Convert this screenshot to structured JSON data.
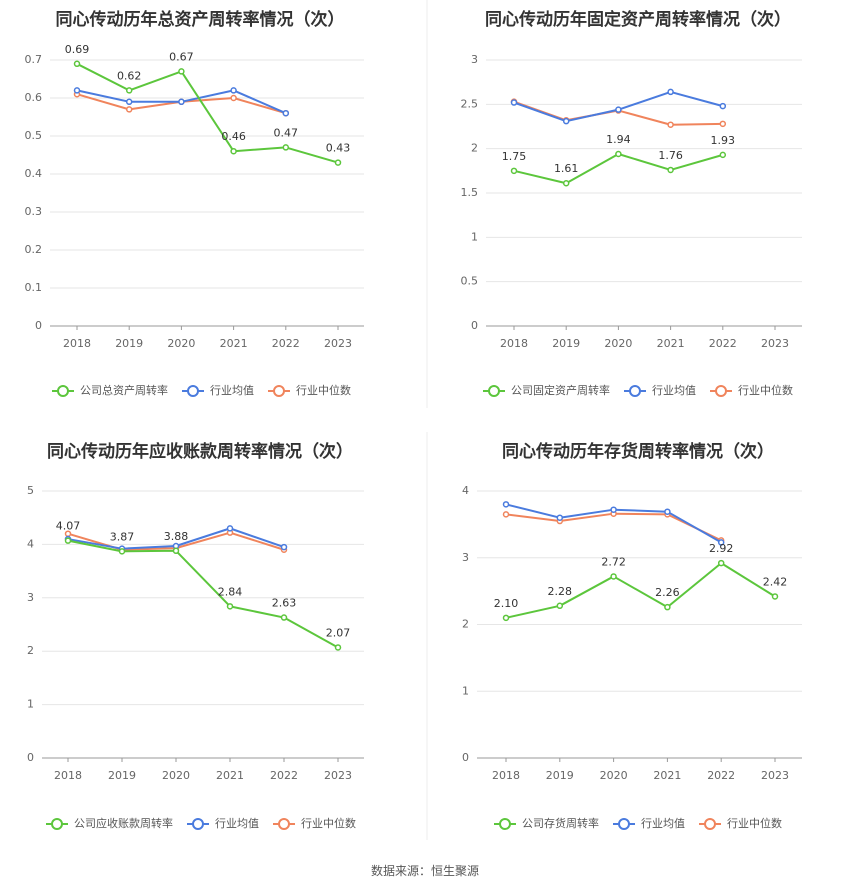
{
  "colors": {
    "company": "#5cc63c",
    "industry_avg": "#4a7bde",
    "industry_median": "#f0845c"
  },
  "source_text": "数据来源：恒生聚源",
  "chart_data": [
    {
      "type": "line",
      "title": "同心传动历年总资产周转率情况（次）",
      "categories": [
        "2018",
        "2019",
        "2020",
        "2021",
        "2022",
        "2023"
      ],
      "yticks": [
        "0",
        "0.1",
        "0.2",
        "0.3",
        "0.4",
        "0.5",
        "0.6",
        "0.7"
      ],
      "ylim": [
        0,
        0.7
      ],
      "series": [
        {
          "name": "公司总资产周转率",
          "values": [
            0.69,
            0.62,
            0.67,
            0.46,
            0.47,
            0.43
          ],
          "labels": [
            "0.69",
            "0.62",
            "0.67",
            "0.46",
            "0.47",
            "0.43"
          ]
        },
        {
          "name": "行业均值",
          "values": [
            0.62,
            0.59,
            0.59,
            0.62,
            0.56,
            null
          ]
        },
        {
          "name": "行业中位数",
          "values": [
            0.61,
            0.57,
            0.59,
            0.6,
            0.56,
            null
          ]
        }
      ]
    },
    {
      "type": "line",
      "title": "同心传动历年固定资产周转率情况（次）",
      "categories": [
        "2018",
        "2019",
        "2020",
        "2021",
        "2022",
        "2023"
      ],
      "yticks": [
        "0",
        "0.5",
        "1",
        "1.5",
        "2",
        "2.5",
        "3"
      ],
      "ylim": [
        0,
        3
      ],
      "series": [
        {
          "name": "公司固定资产周转率",
          "values": [
            1.75,
            1.61,
            1.94,
            1.76,
            1.93,
            null
          ],
          "labels": [
            "1.75",
            "1.61",
            "1.94",
            "1.76",
            "1.93",
            ""
          ]
        },
        {
          "name": "行业均值",
          "values": [
            2.52,
            2.31,
            2.44,
            2.64,
            2.48,
            null
          ]
        },
        {
          "name": "行业中位数",
          "values": [
            2.53,
            2.32,
            2.43,
            2.27,
            2.28,
            null
          ]
        }
      ]
    },
    {
      "type": "line",
      "title": "同心传动历年应收账款周转率情况（次）",
      "categories": [
        "2018",
        "2019",
        "2020",
        "2021",
        "2022",
        "2023"
      ],
      "yticks": [
        "0",
        "1",
        "2",
        "3",
        "4",
        "5"
      ],
      "ylim": [
        0,
        5
      ],
      "series": [
        {
          "name": "公司应收账款周转率",
          "values": [
            4.07,
            3.87,
            3.88,
            2.84,
            2.63,
            2.07
          ],
          "labels": [
            "4.07",
            "3.87",
            "3.88",
            "2.84",
            "2.63",
            "2.07"
          ]
        },
        {
          "name": "行业均值",
          "values": [
            4.1,
            3.92,
            3.97,
            4.3,
            3.95,
            null
          ]
        },
        {
          "name": "行业中位数",
          "values": [
            4.2,
            3.9,
            3.93,
            4.22,
            3.9,
            null
          ]
        }
      ]
    },
    {
      "type": "line",
      "title": "同心传动历年存货周转率情况（次）",
      "categories": [
        "2018",
        "2019",
        "2020",
        "2021",
        "2022",
        "2023"
      ],
      "yticks": [
        "0",
        "1",
        "2",
        "3",
        "4"
      ],
      "ylim": [
        0,
        4
      ],
      "series": [
        {
          "name": "公司存货周转率",
          "values": [
            2.1,
            2.28,
            2.72,
            2.26,
            2.92,
            2.42
          ],
          "labels": [
            "2.10",
            "2.28",
            "2.72",
            "2.26",
            "2.92",
            "2.42"
          ]
        },
        {
          "name": "行业均值",
          "values": [
            3.8,
            3.6,
            3.72,
            3.69,
            3.23,
            null
          ]
        },
        {
          "name": "行业中位数",
          "values": [
            3.65,
            3.55,
            3.66,
            3.65,
            3.26,
            null
          ]
        }
      ]
    }
  ]
}
